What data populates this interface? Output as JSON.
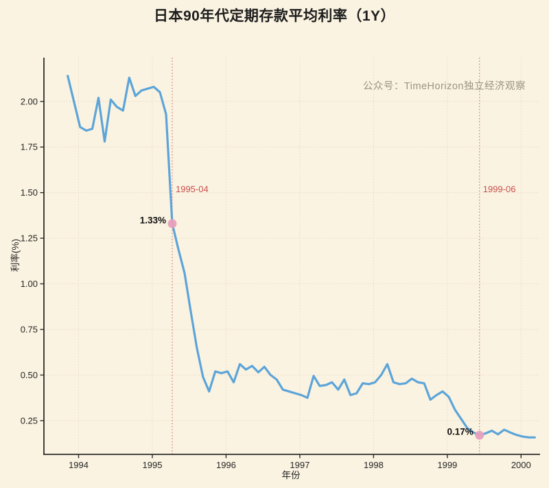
{
  "title": "日本90年代定期存款平均利率（1Y）",
  "watermark": "公众号：TimeHorizon独立经济观察",
  "chart_data": {
    "type": "line",
    "title": "日本90年代定期存款平均利率（1Y）",
    "xlabel": "年份",
    "ylabel": "利率(%)",
    "x_ticks": [
      "1994",
      "1995",
      "1996",
      "1997",
      "1998",
      "1999",
      "2000"
    ],
    "y_ticks": [
      "0.25",
      "0.50",
      "0.75",
      "1.00",
      "1.25",
      "1.50",
      "1.75",
      "2.00"
    ],
    "x_range": [
      1993.53,
      2000.23
    ],
    "y_range": [
      0.065,
      2.24
    ],
    "grid": true,
    "grid_style": "dotted",
    "legend": "none",
    "series": [
      {
        "name": "定期存款平均利率(1Y)",
        "points": [
          [
            "1993-11",
            2.14
          ],
          [
            "1993-12",
            2.0
          ],
          [
            "1994-01",
            1.86
          ],
          [
            "1994-02",
            1.84
          ],
          [
            "1994-03",
            1.85
          ],
          [
            "1994-04",
            2.02
          ],
          [
            "1994-05",
            1.78
          ],
          [
            "1994-06",
            2.01
          ],
          [
            "1994-07",
            1.97
          ],
          [
            "1994-08",
            1.95
          ],
          [
            "1994-09",
            2.13
          ],
          [
            "1994-10",
            2.03
          ],
          [
            "1994-11",
            2.06
          ],
          [
            "1994-12",
            2.07
          ],
          [
            "1995-01",
            2.08
          ],
          [
            "1995-02",
            2.05
          ],
          [
            "1995-03",
            1.93
          ],
          [
            "1995-04",
            1.33
          ],
          [
            "1995-05",
            1.19
          ],
          [
            "1995-06",
            1.06
          ],
          [
            "1995-07",
            0.85
          ],
          [
            "1995-08",
            0.65
          ],
          [
            "1995-09",
            0.49
          ],
          [
            "1995-10",
            0.41
          ],
          [
            "1995-11",
            0.52
          ],
          [
            "1995-12",
            0.51
          ],
          [
            "1996-01",
            0.52
          ],
          [
            "1996-02",
            0.46
          ],
          [
            "1996-03",
            0.56
          ],
          [
            "1996-04",
            0.53
          ],
          [
            "1996-05",
            0.55
          ],
          [
            "1996-06",
            0.515
          ],
          [
            "1996-07",
            0.545
          ],
          [
            "1996-08",
            0.5
          ],
          [
            "1996-09",
            0.475
          ],
          [
            "1996-10",
            0.42
          ],
          [
            "1996-11",
            0.41
          ],
          [
            "1996-12",
            0.4
          ],
          [
            "1997-01",
            0.39
          ],
          [
            "1997-02",
            0.375
          ],
          [
            "1997-03",
            0.495
          ],
          [
            "1997-04",
            0.44
          ],
          [
            "1997-05",
            0.445
          ],
          [
            "1997-06",
            0.46
          ],
          [
            "1997-07",
            0.42
          ],
          [
            "1997-08",
            0.475
          ],
          [
            "1997-09",
            0.39
          ],
          [
            "1997-10",
            0.4
          ],
          [
            "1997-11",
            0.455
          ],
          [
            "1997-12",
            0.45
          ],
          [
            "1998-01",
            0.46
          ],
          [
            "1998-02",
            0.5
          ],
          [
            "1998-03",
            0.56
          ],
          [
            "1998-04",
            0.46
          ],
          [
            "1998-05",
            0.45
          ],
          [
            "1998-06",
            0.455
          ],
          [
            "1998-07",
            0.48
          ],
          [
            "1998-08",
            0.46
          ],
          [
            "1998-09",
            0.455
          ],
          [
            "1998-10",
            0.365
          ],
          [
            "1998-11",
            0.39
          ],
          [
            "1998-12",
            0.41
          ],
          [
            "1999-01",
            0.38
          ],
          [
            "1999-02",
            0.31
          ],
          [
            "1999-03",
            0.26
          ],
          [
            "1999-04",
            0.21
          ],
          [
            "1999-05",
            0.185
          ],
          [
            "1999-06",
            0.17
          ],
          [
            "1999-07",
            0.18
          ],
          [
            "1999-08",
            0.195
          ],
          [
            "1999-09",
            0.175
          ],
          [
            "1999-10",
            0.2
          ],
          [
            "1999-11",
            0.185
          ],
          [
            "1999-12",
            0.172
          ],
          [
            "2000-01",
            0.163
          ],
          [
            "2000-02",
            0.158
          ],
          [
            "2000-03",
            0.158
          ]
        ]
      }
    ],
    "annotations": [
      {
        "date": "1995-04",
        "value": 1.33,
        "date_label": "1995-04",
        "value_label": "1.33%"
      },
      {
        "date": "1999-06",
        "value": 0.17,
        "date_label": "1999-06",
        "value_label": "0.17%"
      }
    ],
    "colors": {
      "background": "#FAF3E1",
      "line": "#5CA4D9",
      "marker": "#E8A0BC",
      "annotation_text": "#C8504F",
      "annotation_line": "#D4716B",
      "grid": "#EBD6C3",
      "axis": "#2B2B2B",
      "tick_text": "#262626",
      "title_text": "#1C1C1C",
      "watermark_text": "#9C9384"
    }
  }
}
